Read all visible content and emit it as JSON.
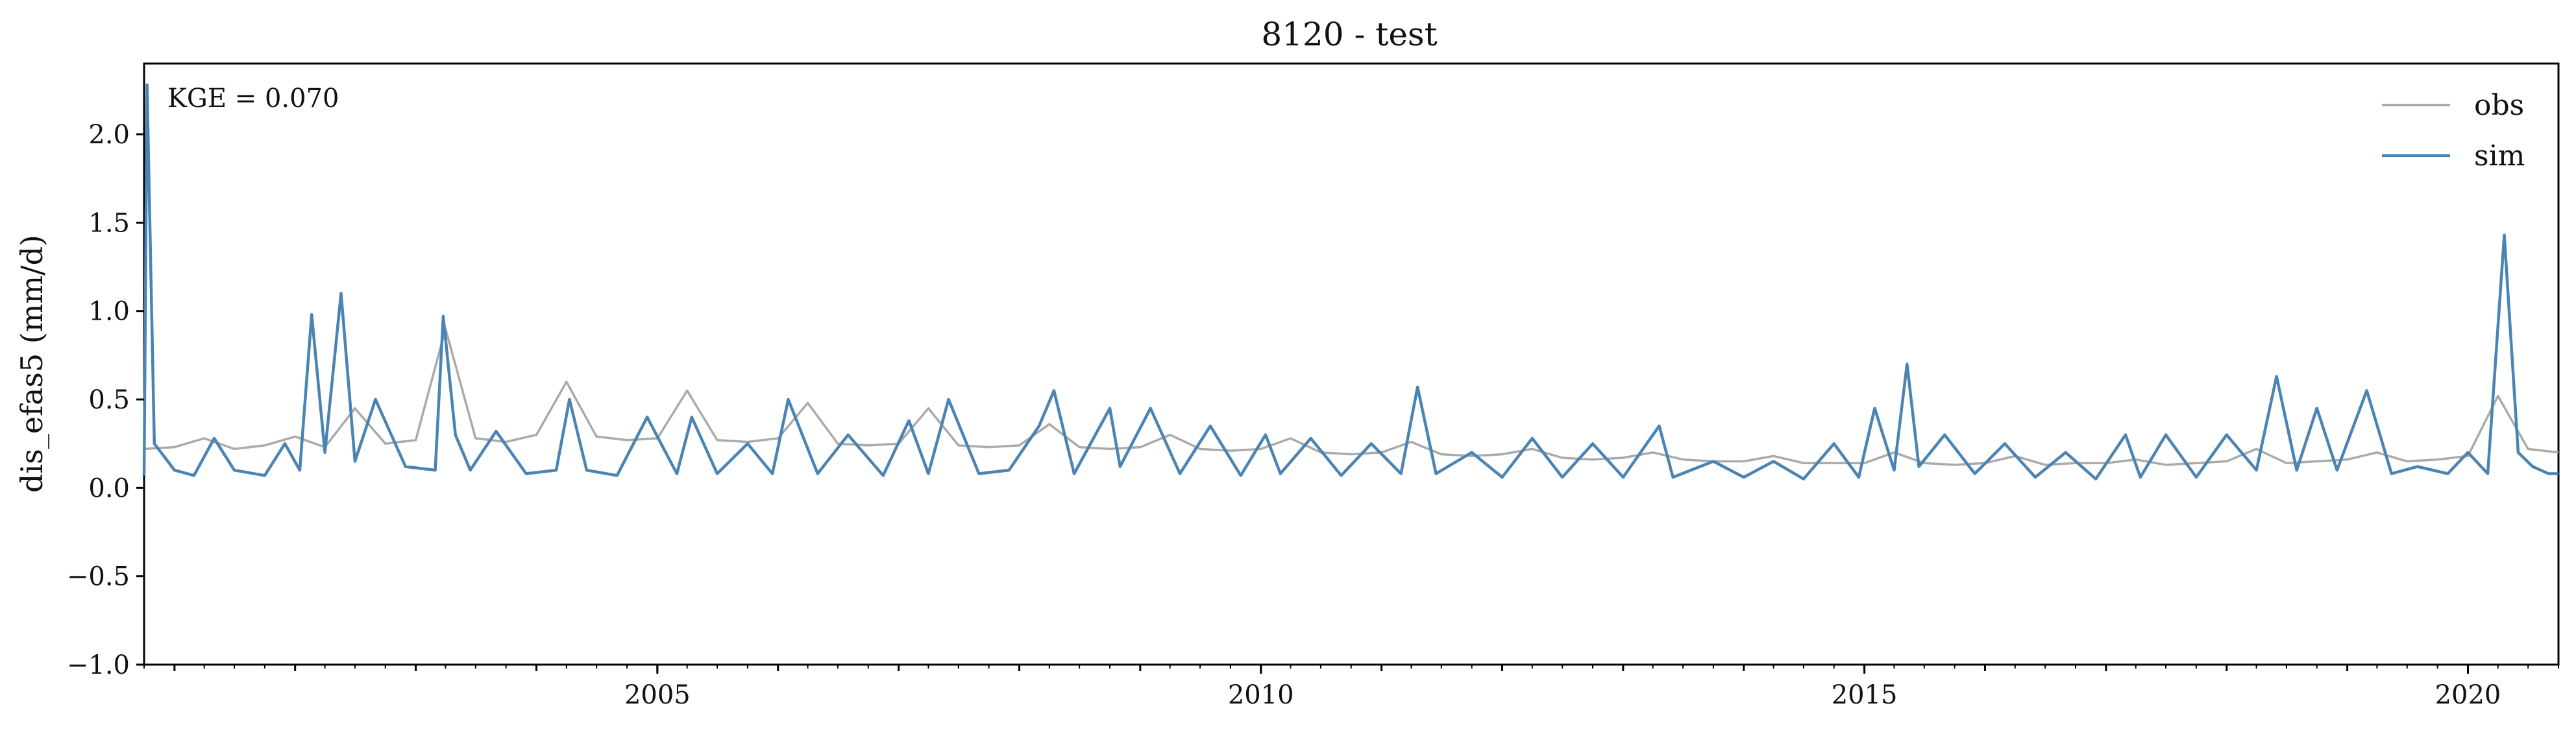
{
  "chart_data": {
    "type": "line",
    "title": "8120 - test",
    "xlabel": "",
    "ylabel": "dis_efas5 (mm/d)",
    "annotation": "KGE = 0.070",
    "xlim": [
      "2000-10-01",
      "2020-10-01"
    ],
    "ylim": [
      -1.0,
      2.4
    ],
    "xticks": [
      {
        "value": "2005-01-01",
        "label": "2005"
      },
      {
        "value": "2010-01-01",
        "label": "2010"
      },
      {
        "value": "2015-01-01",
        "label": "2015"
      },
      {
        "value": "2020-01-01",
        "label": "2020"
      }
    ],
    "yticks": [
      {
        "value": -1.0,
        "label": "−1.0"
      },
      {
        "value": -0.5,
        "label": "−0.5"
      },
      {
        "value": 0.0,
        "label": "0.0"
      },
      {
        "value": 0.5,
        "label": "0.5"
      },
      {
        "value": 1.0,
        "label": "1.0"
      },
      {
        "value": 1.5,
        "label": "1.5"
      },
      {
        "value": 2.0,
        "label": "2.0"
      }
    ],
    "grid": false,
    "legend_position": "top-right",
    "series": [
      {
        "name": "obs",
        "color": "#aaaaaa",
        "x": [
          "2000-10-01",
          "2001-01-01",
          "2001-04-01",
          "2001-07-01",
          "2001-10-01",
          "2002-01-01",
          "2002-04-01",
          "2002-07-01",
          "2002-10-01",
          "2003-01-01",
          "2003-04-01",
          "2003-07-01",
          "2003-10-01",
          "2004-01-01",
          "2004-04-01",
          "2004-07-01",
          "2004-10-01",
          "2005-01-01",
          "2005-04-01",
          "2005-07-01",
          "2005-10-01",
          "2006-01-01",
          "2006-04-01",
          "2006-07-01",
          "2006-10-01",
          "2007-01-01",
          "2007-04-01",
          "2007-07-01",
          "2007-10-01",
          "2008-01-01",
          "2008-04-01",
          "2008-07-01",
          "2008-10-01",
          "2009-01-01",
          "2009-04-01",
          "2009-07-01",
          "2009-10-01",
          "2010-01-01",
          "2010-04-01",
          "2010-07-01",
          "2010-10-01",
          "2011-01-01",
          "2011-04-01",
          "2011-07-01",
          "2011-10-01",
          "2012-01-01",
          "2012-04-01",
          "2012-07-01",
          "2012-10-01",
          "2013-01-01",
          "2013-04-01",
          "2013-07-01",
          "2013-10-01",
          "2014-01-01",
          "2014-04-01",
          "2014-07-01",
          "2014-10-01",
          "2015-01-01",
          "2015-04-01",
          "2015-07-01",
          "2015-10-01",
          "2016-01-01",
          "2016-04-01",
          "2016-07-01",
          "2016-10-01",
          "2017-01-01",
          "2017-04-01",
          "2017-07-01",
          "2017-10-01",
          "2018-01-01",
          "2018-04-01",
          "2018-07-01",
          "2018-10-01",
          "2019-01-01",
          "2019-04-01",
          "2019-07-01",
          "2019-10-01",
          "2020-01-01",
          "2020-04-01",
          "2020-07-01",
          "2020-10-01"
        ],
        "y": [
          0.22,
          0.23,
          0.28,
          0.22,
          0.24,
          0.29,
          0.23,
          0.45,
          0.25,
          0.27,
          0.9,
          0.28,
          0.26,
          0.3,
          0.6,
          0.29,
          0.27,
          0.28,
          0.55,
          0.27,
          0.26,
          0.28,
          0.48,
          0.25,
          0.24,
          0.25,
          0.45,
          0.24,
          0.23,
          0.24,
          0.36,
          0.23,
          0.22,
          0.23,
          0.3,
          0.22,
          0.21,
          0.22,
          0.28,
          0.2,
          0.19,
          0.2,
          0.26,
          0.19,
          0.18,
          0.19,
          0.22,
          0.17,
          0.16,
          0.17,
          0.2,
          0.16,
          0.15,
          0.15,
          0.18,
          0.14,
          0.14,
          0.14,
          0.2,
          0.14,
          0.13,
          0.14,
          0.18,
          0.13,
          0.14,
          0.14,
          0.16,
          0.13,
          0.14,
          0.15,
          0.22,
          0.14,
          0.15,
          0.16,
          0.2,
          0.15,
          0.16,
          0.18,
          0.52,
          0.22,
          0.2
        ]
      },
      {
        "name": "sim",
        "color": "#4a84b4",
        "x": [
          "2000-10-01",
          "2000-10-10",
          "2000-11-01",
          "2001-01-01",
          "2001-03-01",
          "2001-05-01",
          "2001-07-01",
          "2001-10-01",
          "2001-12-01",
          "2002-01-15",
          "2002-02-20",
          "2002-04-01",
          "2002-05-20",
          "2002-07-01",
          "2002-09-01",
          "2002-12-01",
          "2003-03-01",
          "2003-03-25",
          "2003-05-01",
          "2003-06-15",
          "2003-09-01",
          "2003-12-01",
          "2004-03-01",
          "2004-04-10",
          "2004-06-01",
          "2004-09-01",
          "2004-12-01",
          "2005-03-01",
          "2005-04-15",
          "2005-07-01",
          "2005-10-01",
          "2005-12-15",
          "2006-02-01",
          "2006-05-01",
          "2006-08-01",
          "2006-11-15",
          "2007-02-01",
          "2007-04-01",
          "2007-06-01",
          "2007-09-01",
          "2007-12-01",
          "2008-03-01",
          "2008-04-15",
          "2008-06-15",
          "2008-10-01",
          "2008-11-01",
          "2009-02-01",
          "2009-05-01",
          "2009-08-01",
          "2009-11-01",
          "2010-01-15",
          "2010-03-01",
          "2010-06-01",
          "2010-09-01",
          "2010-12-01",
          "2011-03-01",
          "2011-04-20",
          "2011-06-15",
          "2011-10-01",
          "2012-01-01",
          "2012-04-01",
          "2012-07-01",
          "2012-10-01",
          "2013-01-01",
          "2013-04-20",
          "2013-06-01",
          "2013-10-01",
          "2014-01-01",
          "2014-04-01",
          "2014-07-01",
          "2014-10-01",
          "2014-12-15",
          "2015-02-01",
          "2015-04-01",
          "2015-05-10",
          "2015-06-15",
          "2015-09-01",
          "2015-12-01",
          "2016-03-01",
          "2016-06-01",
          "2016-09-01",
          "2016-12-01",
          "2017-03-01",
          "2017-04-15",
          "2017-07-01",
          "2017-10-01",
          "2018-01-01",
          "2018-04-01",
          "2018-06-01",
          "2018-08-01",
          "2018-10-01",
          "2018-12-01",
          "2019-03-01",
          "2019-05-15",
          "2019-08-01",
          "2019-11-01",
          "2020-01-01",
          "2020-03-01",
          "2020-04-20",
          "2020-06-01",
          "2020-07-15",
          "2020-09-01",
          "2020-10-01"
        ],
        "y": [
          0.07,
          2.28,
          0.25,
          0.1,
          0.07,
          0.28,
          0.1,
          0.07,
          0.25,
          0.1,
          0.98,
          0.2,
          1.1,
          0.15,
          0.5,
          0.12,
          0.1,
          0.97,
          0.3,
          0.1,
          0.32,
          0.08,
          0.1,
          0.5,
          0.1,
          0.07,
          0.4,
          0.08,
          0.4,
          0.08,
          0.25,
          0.08,
          0.5,
          0.08,
          0.3,
          0.07,
          0.38,
          0.08,
          0.5,
          0.08,
          0.1,
          0.35,
          0.55,
          0.08,
          0.45,
          0.12,
          0.45,
          0.08,
          0.35,
          0.07,
          0.3,
          0.08,
          0.28,
          0.07,
          0.25,
          0.08,
          0.57,
          0.08,
          0.2,
          0.06,
          0.28,
          0.06,
          0.25,
          0.06,
          0.35,
          0.06,
          0.15,
          0.06,
          0.15,
          0.05,
          0.25,
          0.06,
          0.45,
          0.1,
          0.7,
          0.12,
          0.3,
          0.08,
          0.25,
          0.06,
          0.2,
          0.05,
          0.3,
          0.06,
          0.3,
          0.06,
          0.3,
          0.1,
          0.63,
          0.1,
          0.45,
          0.1,
          0.55,
          0.08,
          0.12,
          0.08,
          0.2,
          0.08,
          1.43,
          0.2,
          0.12,
          0.08,
          0.08
        ]
      }
    ]
  }
}
